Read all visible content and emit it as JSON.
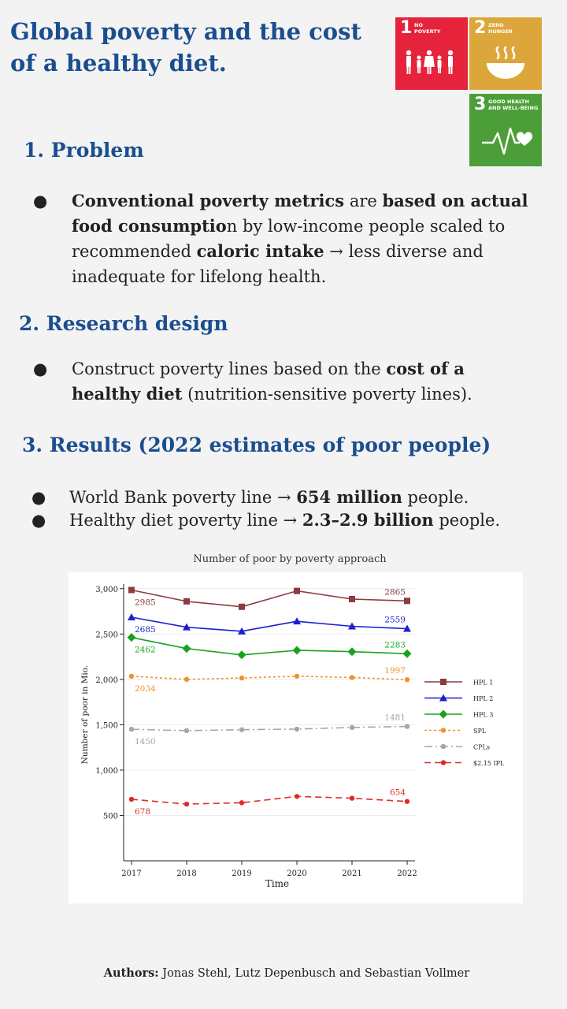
{
  "title": "Global poverty and the cost of a healthy diet.",
  "sdg": [
    {
      "num": "1",
      "label_1": "NO",
      "label_2": "POVERTY",
      "color": "#e5243b",
      "icon": "family-icon"
    },
    {
      "num": "2",
      "label_1": "ZERO",
      "label_2": "HUNGER",
      "color": "#dda63a",
      "icon": "bowl-icon"
    },
    {
      "num": "3",
      "label_1": "GOOD HEALTH",
      "label_2": "AND WELL-BEING",
      "color": "#4c9f38",
      "icon": "heartbeat-icon"
    }
  ],
  "sections": {
    "problem": {
      "heading": "1. Problem",
      "bullet": "●",
      "t1": "Conventional poverty metrics",
      "t2": " are ",
      "t3": "based on actual food consumptio",
      "t4": "n by low-income people scaled to recommended ",
      "t5": "caloric intake",
      "t6": " →  less diverse and inadequate for lifelong health."
    },
    "design": {
      "heading": "2. Research design",
      "bullet": "●",
      "t1": "Construct poverty lines based on the ",
      "t2": "cost of a healthy diet",
      "t3": " (nutrition-sensitive poverty lines)."
    },
    "results": {
      "heading": "3. Results (2022 estimates of poor people)",
      "bullet": "●",
      "r1a": "World Bank poverty line → ",
      "r1b": "654 million",
      "r1c": " people.",
      "r2a": "Healthy diet poverty line → ",
      "r2b": "2.3–2.9 billion",
      "r2c": " people."
    }
  },
  "chart_caption": "Number of poor by poverty approach",
  "chart_data": {
    "type": "line",
    "title": "",
    "xlabel": "Time",
    "ylabel": "Number of poor in Mio.",
    "x": [
      2017,
      2018,
      2019,
      2020,
      2021,
      2022
    ],
    "ylim": [
      0,
      3050
    ],
    "yticks": [
      500,
      1000,
      1500,
      2000,
      2500,
      3000
    ],
    "ytick_labels": [
      "500",
      "1,000",
      "1,500",
      "2,000",
      "2,500",
      "3,000"
    ],
    "legend_position": "right",
    "series": [
      {
        "name": "HPL 1",
        "values": [
          2985,
          2860,
          2800,
          2975,
          2885,
          2865
        ],
        "color": "#8c3b3f",
        "marker": "square",
        "dash": "solid",
        "label_first": "2985",
        "label_last": "2865"
      },
      {
        "name": "HPL 2",
        "values": [
          2685,
          2575,
          2530,
          2640,
          2585,
          2559
        ],
        "color": "#1a1fcf",
        "marker": "triangle",
        "dash": "solid",
        "label_first": "2685",
        "label_last": "2559"
      },
      {
        "name": "HPL 3",
        "values": [
          2462,
          2340,
          2270,
          2320,
          2305,
          2283
        ],
        "color": "#19a31c",
        "marker": "diamond",
        "dash": "solid",
        "label_first": "2462",
        "label_last": "2283"
      },
      {
        "name": "SPL",
        "values": [
          2034,
          2000,
          2015,
          2035,
          2020,
          1997
        ],
        "color": "#f0922b",
        "marker": "circle",
        "dash": "dotted",
        "label_first": "2034",
        "label_last": "1997"
      },
      {
        "name": "CPLs",
        "values": [
          1450,
          1435,
          1445,
          1452,
          1470,
          1481
        ],
        "color": "#a6a6a6",
        "marker": "circle",
        "dash": "dashdot",
        "label_first": "1450",
        "label_last": "1481"
      },
      {
        "name": "$2.15 IPL",
        "values": [
          678,
          625,
          640,
          710,
          690,
          654
        ],
        "color": "#de2a2a",
        "marker": "circle",
        "dash": "dashed",
        "label_first": "678",
        "label_last": "654"
      }
    ]
  },
  "authors": {
    "label": "Authors:",
    "names": " Jonas Stehl, Lutz Depenbusch and Sebastian Vollmer"
  }
}
